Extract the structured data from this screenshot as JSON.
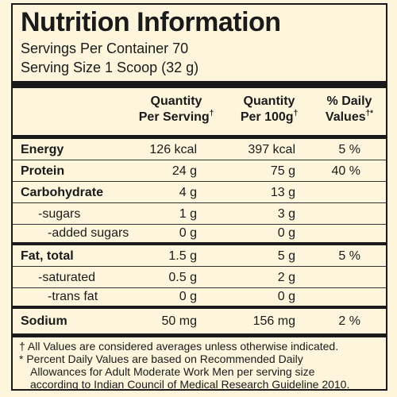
{
  "title": "Nutrition Information",
  "servings_per_container": "Servings Per Container 70",
  "serving_size": "Serving Size 1 Scoop (32 g)",
  "headers": {
    "per_serving_line1": "Quantity",
    "per_serving_line2": "Per Serving",
    "per_100g_line1": "Quantity",
    "per_100g_line2": "Per 100g",
    "dv_line1": "% Daily",
    "dv_line2": "Values",
    "dagger": "†"
  },
  "rows": [
    {
      "name": "Energy",
      "per_serving": "126 kcal",
      "per_100g": "397 kcal",
      "dv": "5 %"
    },
    {
      "name": "Protein",
      "per_serving": "24 g",
      "per_100g": "75 g",
      "dv": "40 %"
    },
    {
      "name": "Carbohydrate",
      "per_serving": "4 g",
      "per_100g": "13 g",
      "dv": ""
    },
    {
      "name": "-sugars",
      "per_serving": "1 g",
      "per_100g": "3 g",
      "dv": ""
    },
    {
      "name": "-added sugars",
      "per_serving": "0 g",
      "per_100g": "0 g",
      "dv": ""
    },
    {
      "name": "Fat, total",
      "per_serving": "1.5 g",
      "per_100g": "5 g",
      "dv": "5 %"
    },
    {
      "name": "-saturated",
      "per_serving": "0.5 g",
      "per_100g": "2 g",
      "dv": ""
    },
    {
      "name": "-trans fat",
      "per_serving": "0 g",
      "per_100g": "0 g",
      "dv": ""
    },
    {
      "name": "Sodium",
      "per_serving": "50 mg",
      "per_100g": "156 mg",
      "dv": "2 %"
    }
  ],
  "footnotes": {
    "dagger_note": "† All Values are considered averages unless otherwise indicated.",
    "asterisk_line1": "* Percent Daily Values are based on Recommended Daily",
    "asterisk_line2": "Allowances for Adult Moderate Work Men per serving size",
    "asterisk_line3": "according to Indian Council of Medical Research Guideline 2010."
  }
}
